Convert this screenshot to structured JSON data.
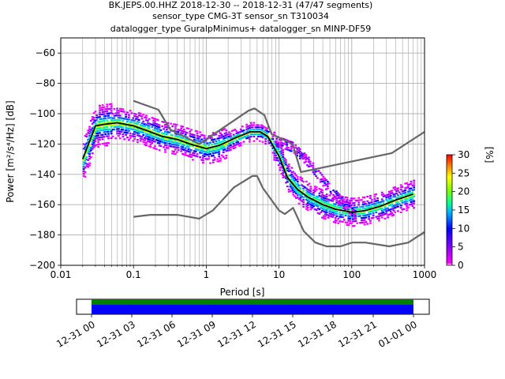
{
  "title_lines": [
    "BK.JEPS.00.HHZ   2018-12-30 -- 2018-12-31  (47/47 segments)",
    "sensor_type CMG-3T sensor_sn T310034",
    "datalogger_type GuralpMinimus+ datalogger_sn MINP-DF59"
  ],
  "chart_data": {
    "type": "heatmap",
    "title": "BK.JEPS.00.HHZ   2018-12-30 -- 2018-12-31  (47/47 segments)",
    "xlabel": "Period [s]",
    "ylabel": "Power [m²/s⁴/Hz] [dB]",
    "x_scale": "log",
    "xlim": [
      0.01,
      1000
    ],
    "ylim": [
      -200,
      -50
    ],
    "x_ticks": [
      "0.01",
      "0.1",
      "1",
      "10",
      "100",
      "1000"
    ],
    "x_tick_values": [
      0.01,
      0.1,
      1,
      10,
      100,
      1000
    ],
    "y_ticks": [
      -200,
      -180,
      -160,
      -140,
      -120,
      -100,
      -80,
      -60
    ],
    "grid": true,
    "colorbar": {
      "label": "[%]",
      "range": [
        0,
        30
      ],
      "ticks": [
        0,
        5,
        10,
        15,
        20,
        25,
        30
      ],
      "colormap": "pqlx"
    },
    "noise_model_high": {
      "period": [
        0.1,
        0.22,
        0.32,
        0.8,
        3.8,
        4.6,
        6.3,
        7.9,
        15.4,
        20,
        354.8,
        1000
      ],
      "value": [
        -91.5,
        -97.4,
        -110.5,
        -120,
        -98,
        -96.5,
        -101,
        -113.5,
        -120,
        -138.5,
        -126,
        -112
      ]
    },
    "noise_model_low": {
      "period": [
        0.1,
        0.17,
        0.4,
        0.8,
        1.24,
        2.4,
        4.3,
        5,
        6,
        10,
        12,
        15.6,
        21.9,
        31.6,
        45,
        70,
        101,
        154,
        328,
        600,
        1000
      ],
      "value": [
        -168,
        -166.7,
        -166.7,
        -169.2,
        -163.7,
        -148.6,
        -141.1,
        -141.1,
        -149,
        -163.8,
        -166.2,
        -162.1,
        -177.5,
        -185,
        -187.5,
        -187.5,
        -185,
        -185,
        -187.5,
        -185,
        -178
      ]
    },
    "mode_curve": {
      "period": [
        0.02,
        0.025,
        0.03,
        0.04,
        0.06,
        0.1,
        0.15,
        0.25,
        0.4,
        0.6,
        1,
        1.5,
        2.5,
        4,
        5.5,
        7,
        10,
        13,
        18,
        25,
        40,
        60,
        100,
        150,
        250,
        400,
        700
      ],
      "value": [
        -130,
        -118,
        -108,
        -107,
        -106,
        -108,
        -111,
        -115,
        -117,
        -120,
        -123,
        -121,
        -116,
        -112,
        -112,
        -115,
        -128,
        -142,
        -150,
        -155,
        -160,
        -163,
        -165,
        -164,
        -161,
        -157,
        -153
      ]
    },
    "time_coverage": {
      "ticks": [
        "12-31 00",
        "12-31 03",
        "12-31 06",
        "12-31 09",
        "12-31 12",
        "12-31 15",
        "12-31 18",
        "12-31 21",
        "01-01 00"
      ],
      "data_available": true
    }
  }
}
